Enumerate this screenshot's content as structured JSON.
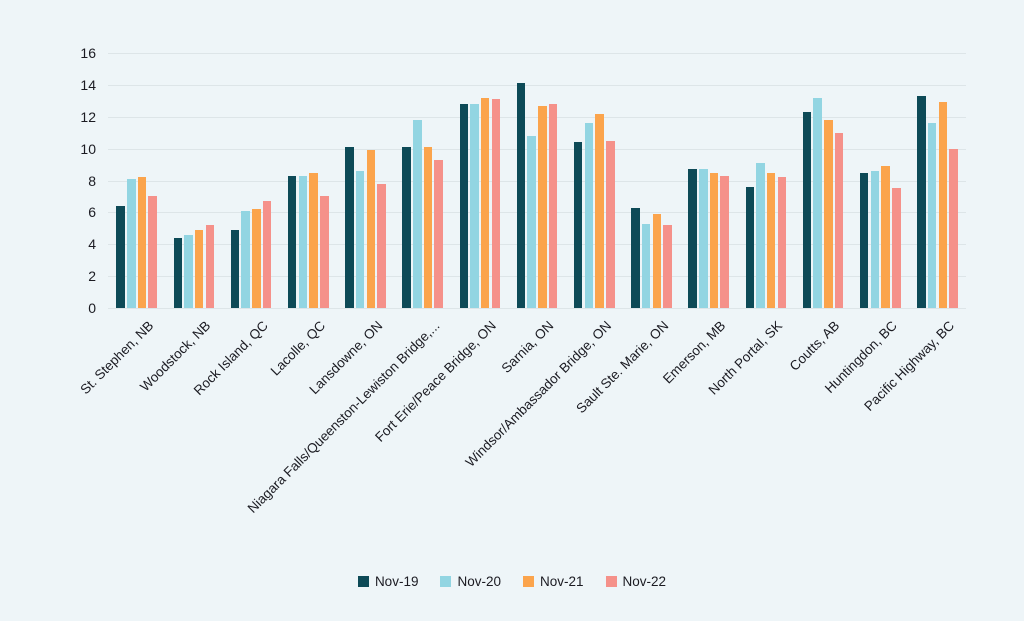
{
  "chart_data": {
    "type": "bar",
    "title": "",
    "xlabel": "",
    "ylabel": "",
    "ylim": [
      0,
      16
    ],
    "ytick_step": 2,
    "grid": true,
    "legend_position": "bottom",
    "background_color": "#eef5f8",
    "gridline_color": "#dde5e8",
    "text_color": "#1b1b22",
    "categories": [
      "St. Stephen, NB",
      "Woodstock, NB",
      "Rock Island, QC",
      "Lacolle, QC",
      "Lansdowne, ON",
      "Niagara Falls/Queenston-Lewiston Bridge,...",
      "Fort Erie/Peace Bridge, ON",
      "Sarnia, ON",
      "Windsor/Ambassador Bridge, ON",
      "Sault Ste. Marie, ON",
      "Emerson, MB",
      "North Portal, SK",
      "Coutts, AB",
      "Huntingdon, BC",
      "Pacific Highway, BC"
    ],
    "series": [
      {
        "name": "Nov-19",
        "color": "#0d4a57",
        "values": [
          6.4,
          4.4,
          4.9,
          8.3,
          10.1,
          10.1,
          12.8,
          14.1,
          10.4,
          6.3,
          8.7,
          7.6,
          12.3,
          8.5,
          13.3
        ]
      },
      {
        "name": "Nov-20",
        "color": "#92d5e2",
        "values": [
          8.1,
          4.6,
          6.1,
          8.3,
          8.6,
          11.8,
          12.8,
          10.8,
          11.6,
          5.3,
          8.7,
          9.1,
          13.2,
          8.6,
          11.6
        ]
      },
      {
        "name": "Nov-21",
        "color": "#fba44c",
        "values": [
          8.2,
          4.9,
          6.2,
          8.5,
          9.9,
          10.1,
          13.2,
          12.7,
          12.2,
          5.9,
          8.5,
          8.5,
          11.8,
          8.9,
          12.9
        ]
      },
      {
        "name": "Nov-22",
        "color": "#f5918a",
        "values": [
          7.0,
          5.2,
          6.7,
          7.0,
          7.8,
          9.3,
          13.1,
          12.8,
          10.5,
          5.2,
          8.3,
          8.2,
          11.0,
          7.5,
          10.0
        ]
      }
    ],
    "ytick_labels": [
      "0",
      "2",
      "4",
      "6",
      "8",
      "10",
      "12",
      "14",
      "16"
    ]
  }
}
